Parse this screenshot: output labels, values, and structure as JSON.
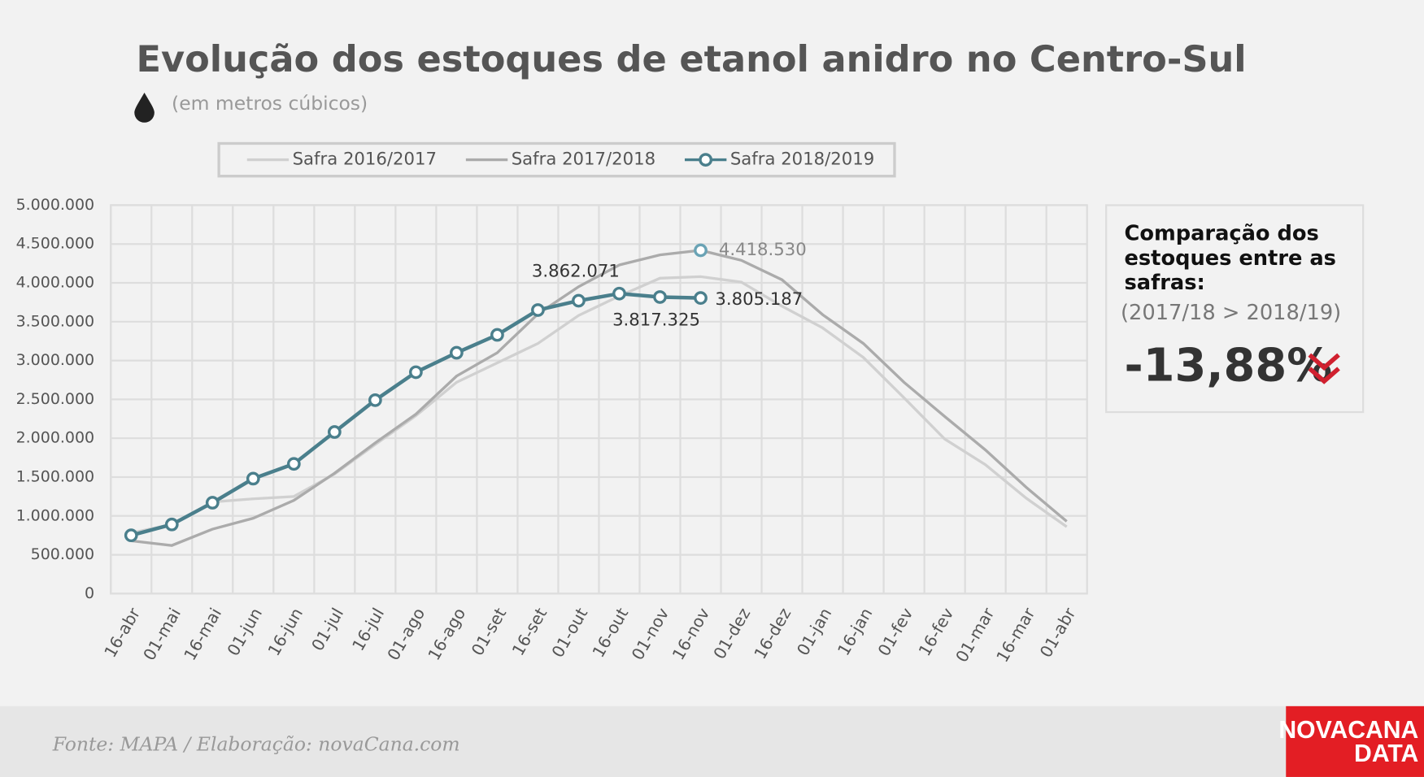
{
  "chart_data": {
    "type": "line",
    "title": "Evolução dos estoques de etanol anidro no Centro-Sul",
    "subtitle": "(em metros cúbicos)",
    "categories": [
      "16-abr",
      "01-mai",
      "16-mai",
      "01-jun",
      "16-jun",
      "01-jul",
      "16-jul",
      "01-ago",
      "16-ago",
      "01-set",
      "16-set",
      "01-out",
      "16-out",
      "01-nov",
      "16-nov",
      "01-dez",
      "16-dez",
      "01-jan",
      "16-jan",
      "01-fev",
      "16-fev",
      "01-mar",
      "16-mar",
      "01-abr"
    ],
    "series": [
      {
        "name": "Safra 2016/2017",
        "color": "#d0d0d0",
        "values": [
          780000,
          890000,
          1180000,
          1220000,
          1250000,
          1540000,
          1920000,
          2290000,
          2720000,
          2970000,
          3220000,
          3580000,
          3830000,
          4060000,
          4080000,
          4010000,
          3700000,
          3420000,
          3040000,
          2520000,
          1990000,
          1660000,
          1230000,
          860000
        ]
      },
      {
        "name": "Safra 2017/2018",
        "color": "#ababab",
        "values": [
          680000,
          620000,
          830000,
          970000,
          1200000,
          1550000,
          1940000,
          2310000,
          2800000,
          3100000,
          3600000,
          3950000,
          4230000,
          4360000,
          4418530,
          4290000,
          4040000,
          3590000,
          3220000,
          2720000,
          2280000,
          1850000,
          1370000,
          930000
        ],
        "value_labels": [
          null,
          null,
          null,
          null,
          null,
          null,
          null,
          null,
          null,
          null,
          null,
          null,
          null,
          null,
          "4.418.530",
          null,
          null,
          null,
          null,
          null,
          null,
          null,
          null,
          null
        ]
      },
      {
        "name": "Safra 2018/2019",
        "color": "#4a7f8c",
        "values": [
          750000,
          890000,
          1170000,
          1480000,
          1670000,
          2080000,
          2490000,
          2850000,
          3100000,
          3330000,
          3650000,
          3770000,
          3862071,
          3817325,
          3805187,
          null,
          null,
          null,
          null,
          null,
          null,
          null,
          null,
          null
        ],
        "value_labels": [
          null,
          null,
          null,
          null,
          null,
          null,
          null,
          null,
          null,
          null,
          null,
          null,
          "3.862.071",
          "3.817.325",
          "3.805.187",
          null,
          null,
          null,
          null,
          null,
          null,
          null,
          null,
          null
        ]
      }
    ],
    "ylim": [
      0,
      5000000
    ],
    "yticks": [
      0,
      {
        "value": 500000,
        "label": "500.000"
      },
      {
        "value": 1000000,
        "label": "1.000.000"
      },
      {
        "value": 1500000,
        "label": "1.500.000"
      },
      {
        "value": 2000000,
        "label": "2.000.000"
      },
      {
        "value": 2500000,
        "label": "2.500.000"
      },
      {
        "value": 3000000,
        "label": "3.000.000"
      },
      {
        "value": 3500000,
        "label": "3.500.000"
      },
      {
        "value": 4000000,
        "label": "4.000.000"
      },
      {
        "value": 4500000,
        "label": "4.500.000"
      },
      {
        "value": 5000000,
        "label": "5.000.000"
      }
    ],
    "grid": true,
    "legend": "top"
  },
  "panel": {
    "title_lines": [
      "Comparação dos",
      "estoques entre as",
      "safras:"
    ],
    "subtitle": "(2017/18 > 2018/19)",
    "value": "-13,88%"
  },
  "footer": {
    "source": "Fonte: MAPA  / Elaboração: novaCana.com"
  },
  "logo": {
    "line1": "NOVACANA",
    "line2": "DATA"
  }
}
